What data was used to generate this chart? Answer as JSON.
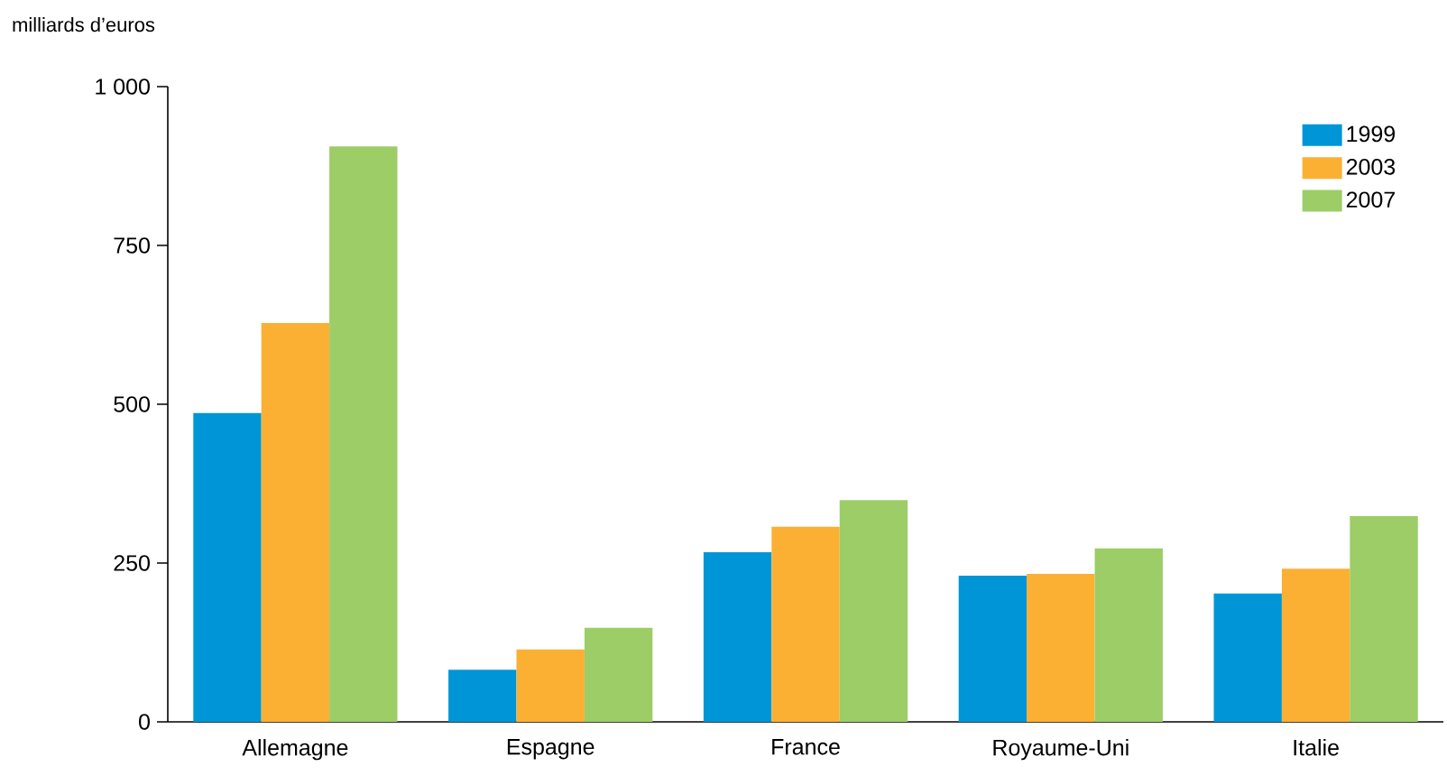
{
  "chart_data": {
    "type": "bar",
    "ylabel": "milliards d’euros",
    "categories": [
      "Allemagne",
      "Espagne",
      "France",
      "Royaume-Uni",
      "Italie"
    ],
    "series": [
      {
        "name": "1999",
        "color": "#0095d6",
        "values": [
          486,
          82,
          267,
          230,
          202
        ]
      },
      {
        "name": "2003",
        "color": "#fbb034",
        "values": [
          628,
          114,
          307,
          233,
          241
        ]
      },
      {
        "name": "2007",
        "color": "#9ccd67",
        "values": [
          906,
          148,
          349,
          273,
          324
        ]
      }
    ],
    "ylim": [
      0,
      1000
    ],
    "yticks": [
      0,
      250,
      500,
      750,
      {
        "value": 1000,
        "label": "1 000"
      }
    ],
    "grid": false,
    "legend": "top right"
  }
}
